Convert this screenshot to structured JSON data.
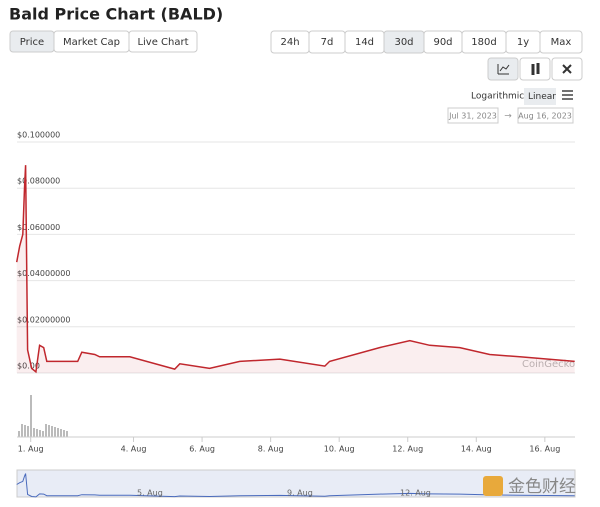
{
  "header": {
    "title": "Bald Price Chart (BALD)"
  },
  "controls": {
    "tabs": [
      "Price",
      "Market Cap",
      "Live Chart"
    ],
    "ranges": [
      "24h",
      "7d",
      "14d",
      "30d",
      "90d",
      "180d",
      "1y",
      "Max"
    ],
    "scales": [
      "Logarithmic",
      "Linear"
    ],
    "date_from": "Jul 31, 2023",
    "date_to": "Aug 16, 2023"
  },
  "chart_data": {
    "type": "line",
    "x": [
      0.59,
      0.68,
      0.77,
      0.82,
      0.85,
      0.91,
      1.03,
      1.15,
      1.26,
      1.38,
      1.47,
      2.37,
      2.49,
      2.87,
      3.01,
      3.89,
      5.2,
      5.35,
      6.22,
      7.1,
      8.27,
      9.58,
      9.72,
      11.18,
      12.06,
      12.64,
      13.52,
      14.39,
      15.27,
      16.87
    ],
    "series": [
      {
        "color": "#c0272d",
        "values": [
          0.048,
          0.055,
          0.06,
          0.08,
          0.09,
          0.01,
          0.002,
          0.0005,
          0.012,
          0.011,
          0.005,
          0.005,
          0.009,
          0.008,
          0.007,
          0.007,
          0.0017,
          0.004,
          0.002,
          0.005,
          0.006,
          0.003,
          0.005,
          0.011,
          0.014,
          0.012,
          0.011,
          0.008,
          0.007,
          0.005
        ]
      }
    ],
    "xlim": [
      0.6,
      16.88
    ],
    "xticks": [
      {
        "value": 1,
        "label": "1. Aug"
      },
      {
        "value": 4,
        "label": "4. Aug"
      },
      {
        "value": 6,
        "label": "6. Aug"
      },
      {
        "value": 8,
        "label": "8. Aug"
      },
      {
        "value": 10,
        "label": "10. Aug"
      },
      {
        "value": 12,
        "label": "12. Aug"
      },
      {
        "value": 14,
        "label": "14. Aug"
      },
      {
        "value": 16,
        "label": "16. Aug"
      }
    ],
    "ylim": [
      0,
      0.1
    ],
    "yticks": [
      {
        "value": 0,
        "label": "$0.00"
      },
      {
        "value": 0.02,
        "label": "$0.02000000"
      },
      {
        "value": 0.04,
        "label": "$0.04000000"
      },
      {
        "value": 0.06,
        "label": "$0.060000"
      },
      {
        "value": 0.08,
        "label": "$0.080000"
      },
      {
        "value": 0.1,
        "label": "$0.100000"
      }
    ],
    "grid": true,
    "watermark": "CoinGecko",
    "navigator_labels": [
      "5. Aug",
      "9. Aug",
      "12. Aug"
    ]
  },
  "footer": {
    "watermark": "金色财经"
  }
}
